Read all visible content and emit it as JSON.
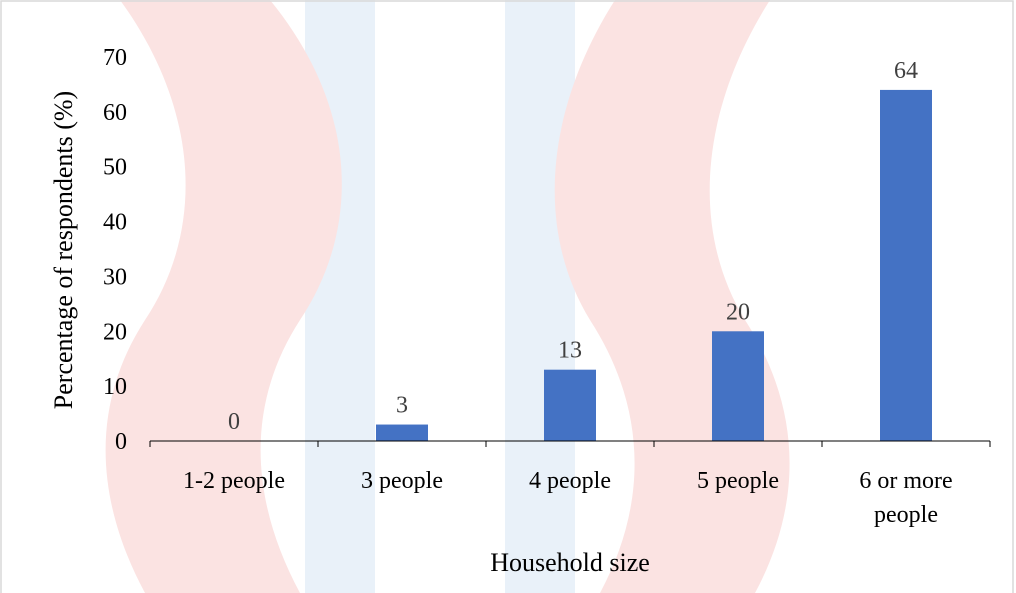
{
  "chart_data": {
    "type": "bar",
    "title": "",
    "xlabel": "Household size",
    "ylabel": "Percentage of respondents (%)",
    "categories": [
      [
        "1-2 people"
      ],
      [
        "3 people"
      ],
      [
        "4 people"
      ],
      [
        "5 people"
      ],
      [
        "6 or more",
        "people"
      ]
    ],
    "values": [
      0,
      3,
      13,
      20,
      64
    ],
    "data_labels": [
      "0",
      "3",
      "13",
      "20",
      "64"
    ],
    "yticks": [
      "0",
      "10",
      "20",
      "30",
      "40",
      "50",
      "60",
      "70"
    ],
    "ylim": [
      0,
      70
    ],
    "grid": false,
    "legend": "none",
    "colors": {
      "bar": "#4472c4",
      "watermark_red": "#fbe3e2",
      "watermark_blue": "#e9f1f9",
      "frame": "#d9d9d9"
    }
  }
}
